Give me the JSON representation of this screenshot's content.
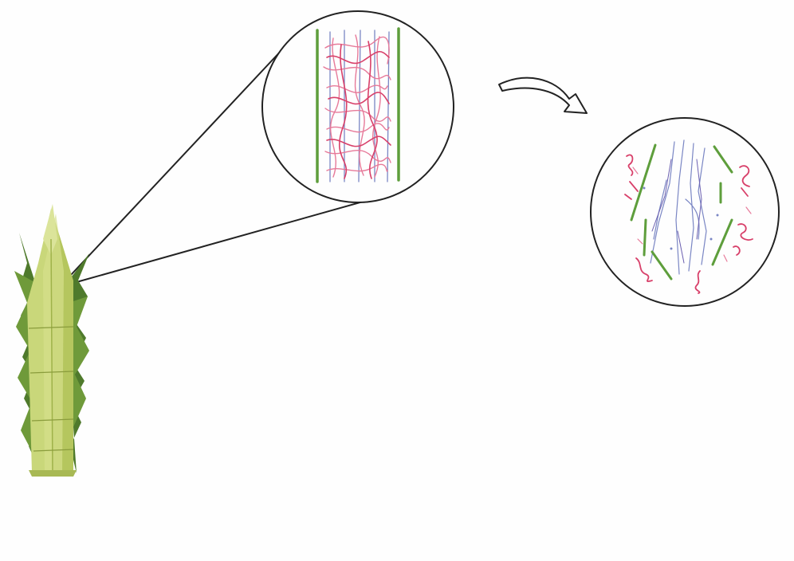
{
  "colors": {
    "background": "#fefefe",
    "outline": "#222222",
    "plant_stalk_light": "#c9d77a",
    "plant_stalk_mid": "#b5c65e",
    "plant_stalk_shade": "#9fb24a",
    "plant_leaf": "#4f7a2c",
    "plant_leaf_light": "#6f9a3a",
    "plant_node_line": "#8a9c3c",
    "fiber_green": "#5e9e3c",
    "fiber_red": "#d8406a",
    "fiber_pink": "#e77a9a",
    "fiber_purple": "#6b5fb0",
    "fiber_blue": "#7a86c4"
  },
  "icons": {
    "plant": "bamboo-shoot-icon",
    "zoom": "magnifier-circle-icon",
    "arrow": "curved-arrow-icon",
    "result": "broken-fibers-circle-icon"
  }
}
